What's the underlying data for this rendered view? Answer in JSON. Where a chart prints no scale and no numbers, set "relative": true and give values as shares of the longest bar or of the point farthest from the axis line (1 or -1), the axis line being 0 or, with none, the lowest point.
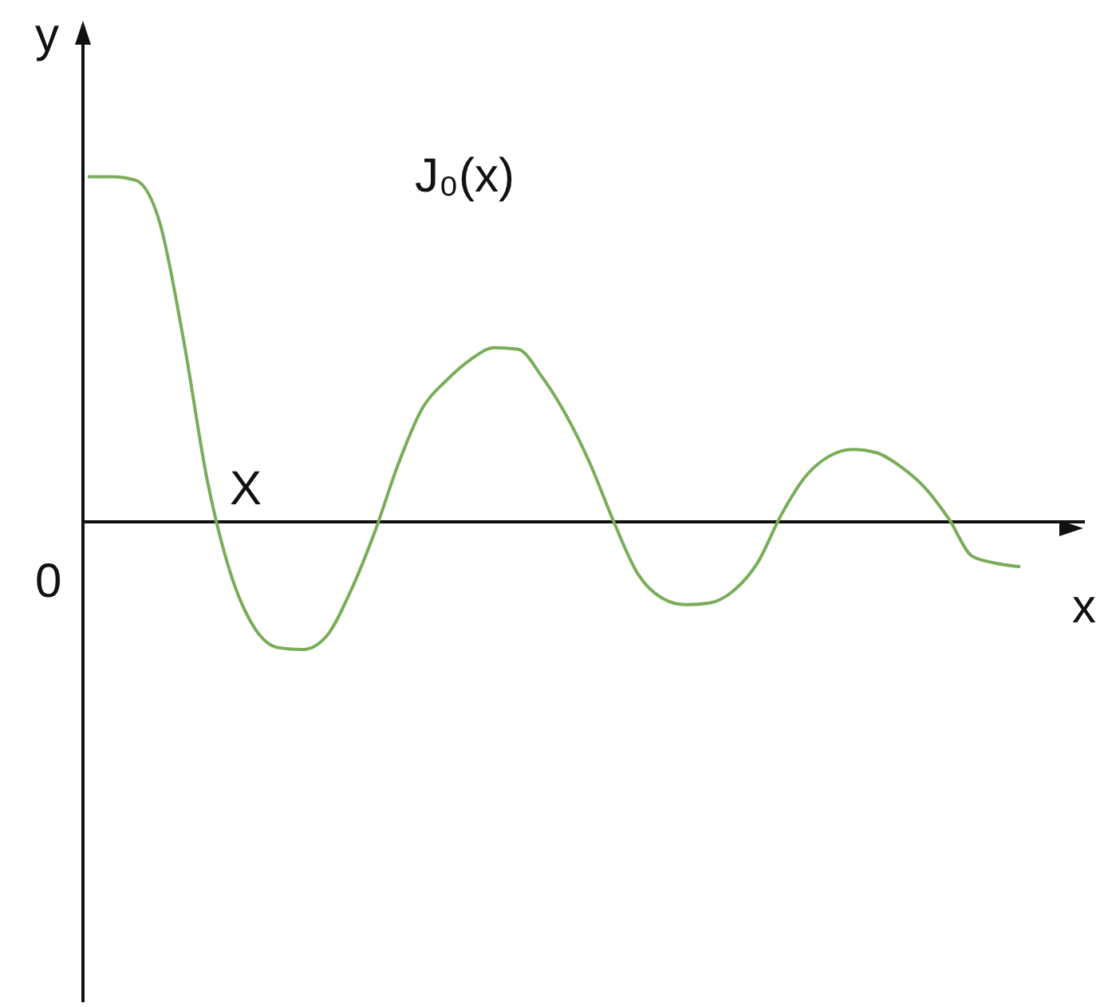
{
  "chart_data": {
    "type": "line",
    "relative": true,
    "xlabel": "x",
    "ylabel": "y",
    "marker": "none",
    "annotations": [
      "J₀(x)",
      "X",
      "0"
    ],
    "categories": [
      null,
      null,
      null,
      null,
      null,
      null,
      null,
      null,
      null,
      null,
      null,
      null,
      null,
      null,
      null,
      null,
      null,
      null,
      null,
      null,
      null,
      null,
      null,
      null,
      null,
      null,
      null,
      null,
      null,
      null,
      null,
      null,
      null,
      null,
      null,
      null,
      null,
      null,
      null,
      null
    ],
    "series": [
      {
        "color": "#7aad5a",
        "values": [
          1.0,
          1.0,
          0.99,
          0.87,
          0.53,
          0.12,
          -0.155,
          -0.31,
          -0.365,
          -0.37,
          -0.33,
          -0.2,
          -0.03,
          0.17,
          0.33,
          0.41,
          0.47,
          0.505,
          0.5,
          0.42,
          0.31,
          0.17,
          0.0,
          -0.15,
          -0.22,
          -0.24,
          -0.235,
          -0.2,
          -0.12,
          0.02,
          0.13,
          0.19,
          0.21,
          0.2,
          0.16,
          0.1,
          0.01,
          -0.1,
          -0.12,
          -0.13
        ]
      }
    ]
  }
}
